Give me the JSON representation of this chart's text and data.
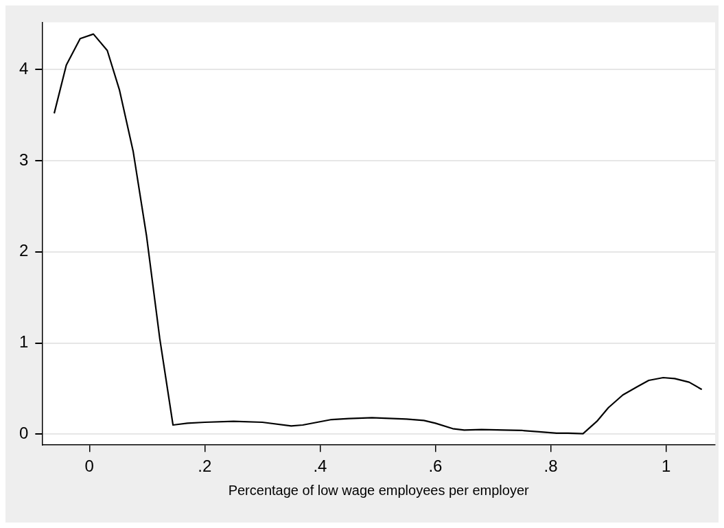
{
  "chart_data": {
    "type": "line",
    "xlabel": "Percentage of low wage employees per employer",
    "series": [
      {
        "color": "#000000",
        "x": [
          -0.061,
          -0.04,
          -0.016,
          0.007,
          0.031,
          0.052,
          0.076,
          0.099,
          0.122,
          0.145,
          0.17,
          0.2,
          0.25,
          0.3,
          0.35,
          0.37,
          0.42,
          0.45,
          0.49,
          0.55,
          0.58,
          0.6,
          0.63,
          0.65,
          0.68,
          0.72,
          0.75,
          0.78,
          0.81,
          0.83,
          0.856,
          0.88,
          0.9,
          0.925,
          0.95,
          0.97,
          0.995,
          1.015,
          1.04,
          1.062
        ],
        "values": [
          3.52,
          4.05,
          4.34,
          4.39,
          4.21,
          3.78,
          3.1,
          2.18,
          1.05,
          0.1,
          0.12,
          0.13,
          0.14,
          0.13,
          0.09,
          0.1,
          0.16,
          0.17,
          0.18,
          0.165,
          0.15,
          0.12,
          0.06,
          0.045,
          0.05,
          0.045,
          0.04,
          0.025,
          0.01,
          0.01,
          0.005,
          0.14,
          0.29,
          0.43,
          0.52,
          0.59,
          0.62,
          0.61,
          0.57,
          0.49
        ]
      }
    ],
    "xlim": [
      -0.082,
      1.085
    ],
    "xticks": [
      0,
      {
        "value": 0.2,
        "label": ".2"
      },
      {
        "value": 0.4,
        "label": ".4"
      },
      {
        "value": 0.6,
        "label": ".6"
      },
      {
        "value": 0.8,
        "label": ".8"
      },
      1
    ],
    "ylim": [
      -0.12,
      4.52
    ],
    "yticks": [
      0,
      1,
      2,
      3,
      4
    ],
    "grid": "y",
    "legend": false,
    "marker": "none",
    "line_style": "solid"
  }
}
